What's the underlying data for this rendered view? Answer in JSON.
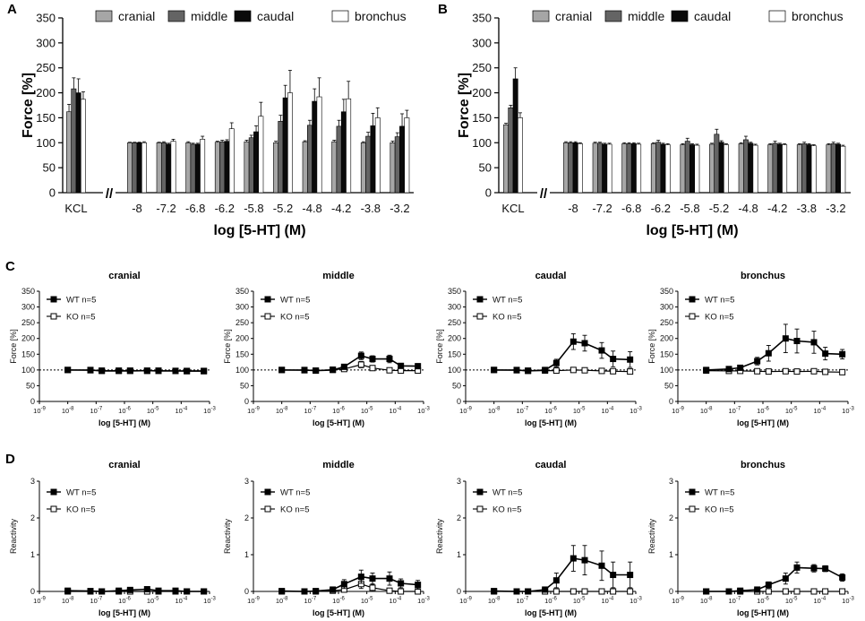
{
  "chart_data": [
    {
      "panel": "A",
      "type": "bar",
      "ylabel": "Force [%]",
      "xlabel": "log [5-HT] (M)",
      "ylim": [
        0,
        350
      ],
      "yticks": [
        0,
        50,
        100,
        150,
        200,
        250,
        300,
        350
      ],
      "break_symbol": "//",
      "categories": [
        "KCL",
        "-8",
        "-7.2",
        "-6.8",
        "-6.2",
        "-5.8",
        "-5.2",
        "-4.8",
        "-4.2",
        "-3.8",
        "-3.2"
      ],
      "series": [
        {
          "name": "cranial",
          "color": "#a6a6a6",
          "values": [
            162,
            100,
            100,
            100,
            101,
            102,
            100,
            102,
            102,
            100,
            100
          ],
          "errors": [
            15,
            1,
            1,
            2,
            2,
            3,
            3,
            2,
            3,
            2,
            3
          ]
        },
        {
          "name": "middle",
          "color": "#646464",
          "values": [
            208,
            100,
            100,
            97,
            102,
            110,
            143,
            135,
            133,
            113,
            112
          ],
          "errors": [
            22,
            1,
            2,
            2,
            3,
            5,
            12,
            10,
            12,
            8,
            8
          ]
        },
        {
          "name": "caudal",
          "color": "#0a0a0a",
          "values": [
            200,
            100,
            97,
            97,
            103,
            122,
            190,
            183,
            162,
            134,
            133
          ],
          "errors": [
            28,
            1,
            2,
            2,
            3,
            12,
            25,
            25,
            25,
            25,
            25
          ]
        },
        {
          "name": "bronchus",
          "color": "#ffffff",
          "values": [
            187,
            100,
            103,
            107,
            128,
            153,
            200,
            192,
            188,
            150,
            150
          ],
          "errors": [
            15,
            2,
            4,
            6,
            12,
            28,
            45,
            38,
            35,
            20,
            15
          ]
        }
      ]
    },
    {
      "panel": "B",
      "type": "bar",
      "ylabel": "Force [%]",
      "xlabel": "log [5-HT] (M)",
      "ylim": [
        0,
        350
      ],
      "yticks": [
        0,
        50,
        100,
        150,
        200,
        250,
        300,
        350
      ],
      "break_symbol": "//",
      "categories": [
        "KCL",
        "-8",
        "-7.2",
        "-6.8",
        "-6.2",
        "-5.8",
        "-5.2",
        "-4.8",
        "-4.2",
        "-3.8",
        "-3.2"
      ],
      "series": [
        {
          "name": "cranial",
          "color": "#a6a6a6",
          "values": [
            136,
            100,
            99,
            98,
            98,
            96,
            97,
            98,
            96,
            96,
            96
          ],
          "errors": [
            3,
            2,
            2,
            2,
            2,
            2,
            2,
            2,
            2,
            2,
            2
          ]
        },
        {
          "name": "middle",
          "color": "#646464",
          "values": [
            170,
            100,
            99,
            98,
            101,
            103,
            117,
            106,
            99,
            98,
            98
          ],
          "errors": [
            5,
            2,
            2,
            2,
            4,
            6,
            10,
            7,
            4,
            3,
            3
          ]
        },
        {
          "name": "caudal",
          "color": "#0a0a0a",
          "values": [
            228,
            100,
            97,
            98,
            97,
            96,
            101,
            99,
            97,
            96,
            97
          ],
          "errors": [
            22,
            2,
            2,
            2,
            2,
            2,
            3,
            2,
            2,
            2,
            2
          ]
        },
        {
          "name": "bronchus",
          "color": "#ffffff",
          "values": [
            150,
            98,
            97,
            97,
            96,
            95,
            96,
            95,
            96,
            94,
            93
          ],
          "errors": [
            10,
            2,
            2,
            2,
            2,
            2,
            2,
            2,
            2,
            2,
            2
          ]
        }
      ]
    },
    {
      "panel": "C",
      "type": "line",
      "ylabel": "Force [%]",
      "xlabel": "log [5-HT] (M)",
      "ylim": [
        0,
        350
      ],
      "yticks": [
        0,
        50,
        100,
        150,
        200,
        250,
        300,
        350
      ],
      "baseline": 100,
      "x_exponents": [
        -9,
        -8,
        -7,
        -6,
        -5,
        -4,
        -3
      ],
      "x": [
        -8,
        -7.2,
        -6.8,
        -6.2,
        -5.8,
        -5.2,
        -4.8,
        -4.2,
        -3.8,
        -3.2
      ],
      "legend": {
        "wt": "WT  n=5",
        "ko": "KO  n=5"
      },
      "plots": [
        {
          "title": "cranial",
          "wt": [
            100,
            100,
            97,
            97,
            97,
            98,
            97,
            97,
            97,
            97
          ],
          "wt_err": [
            1,
            1,
            1,
            2,
            2,
            3,
            2,
            2,
            2,
            2
          ],
          "ko": [
            100,
            99,
            98,
            98,
            98,
            97,
            98,
            97,
            96,
            96
          ],
          "ko_err": [
            1,
            1,
            1,
            1,
            1,
            1,
            1,
            1,
            1,
            1
          ]
        },
        {
          "title": "middle",
          "wt": [
            100,
            100,
            98,
            100,
            110,
            145,
            135,
            135,
            113,
            112
          ],
          "wt_err": [
            1,
            1,
            1,
            2,
            5,
            12,
            10,
            12,
            8,
            8
          ],
          "ko": [
            100,
            99,
            98,
            101,
            103,
            117,
            106,
            99,
            98,
            98
          ],
          "ko_err": [
            1,
            1,
            1,
            3,
            5,
            10,
            7,
            4,
            3,
            3
          ]
        },
        {
          "title": "caudal",
          "wt": [
            100,
            100,
            97,
            100,
            122,
            190,
            185,
            162,
            135,
            133
          ],
          "wt_err": [
            1,
            1,
            1,
            3,
            12,
            25,
            25,
            25,
            25,
            25
          ],
          "ko": [
            100,
            99,
            98,
            98,
            98,
            100,
            99,
            97,
            96,
            95
          ],
          "ko_err": [
            1,
            1,
            1,
            1,
            1,
            2,
            2,
            1,
            1,
            1
          ]
        },
        {
          "title": "bronchus",
          "wt": [
            100,
            103,
            107,
            128,
            153,
            200,
            192,
            188,
            152,
            150
          ],
          "wt_err": [
            2,
            4,
            6,
            12,
            25,
            45,
            38,
            35,
            20,
            15
          ],
          "ko": [
            98,
            97,
            97,
            96,
            95,
            96,
            95,
            96,
            94,
            93
          ],
          "ko_err": [
            1,
            1,
            1,
            1,
            1,
            1,
            1,
            1,
            1,
            1
          ]
        }
      ]
    },
    {
      "panel": "D",
      "type": "line",
      "ylabel": "Reactivity",
      "xlabel": "log [5-HT] (M)",
      "ylim": [
        0,
        3
      ],
      "yticks": [
        0,
        1,
        2,
        3
      ],
      "x_exponents": [
        -9,
        -8,
        -7,
        -6,
        -5,
        -4,
        -3
      ],
      "x": [
        -8,
        -7.2,
        -6.8,
        -6.2,
        -5.8,
        -5.2,
        -4.8,
        -4.2,
        -3.8,
        -3.2
      ],
      "legend": {
        "wt": "WT  n=5",
        "ko": "KO  n=5"
      },
      "plots": [
        {
          "title": "cranial",
          "wt": [
            0.02,
            0.01,
            0,
            0.02,
            0.04,
            0.06,
            0.02,
            0.02,
            0,
            0
          ],
          "wt_err": [
            0.02,
            0.02,
            0.02,
            0.03,
            0.04,
            0.06,
            0.04,
            0.03,
            0.02,
            0.02
          ],
          "ko": [
            0,
            0,
            0,
            0,
            0,
            0,
            0,
            0,
            0,
            0
          ],
          "ko_err": [
            0,
            0,
            0,
            0,
            0,
            0,
            0,
            0,
            0,
            0
          ]
        },
        {
          "title": "middle",
          "wt": [
            0.01,
            0,
            0.01,
            0.05,
            0.2,
            0.4,
            0.35,
            0.35,
            0.22,
            0.18
          ],
          "wt_err": [
            0.02,
            0.02,
            0.03,
            0.05,
            0.12,
            0.18,
            0.15,
            0.18,
            0.12,
            0.12
          ],
          "ko": [
            0,
            0,
            0,
            0.02,
            0.05,
            0.2,
            0.1,
            0.02,
            0,
            0
          ],
          "ko_err": [
            0.01,
            0.01,
            0.01,
            0.03,
            0.05,
            0.12,
            0.1,
            0.04,
            0.02,
            0.02
          ]
        },
        {
          "title": "caudal",
          "wt": [
            0.01,
            0,
            0,
            0.05,
            0.3,
            0.9,
            0.85,
            0.7,
            0.45,
            0.45
          ],
          "wt_err": [
            0.02,
            0.02,
            0.02,
            0.05,
            0.2,
            0.35,
            0.4,
            0.4,
            0.35,
            0.35
          ],
          "ko": [
            0,
            0,
            0,
            0,
            0,
            0,
            0,
            0,
            0,
            0
          ],
          "ko_err": [
            0,
            0,
            0,
            0,
            0,
            0,
            0,
            0,
            0,
            0
          ]
        },
        {
          "title": "bronchus",
          "wt": [
            0,
            0,
            0.02,
            0.05,
            0.18,
            0.35,
            0.65,
            0.63,
            0.62,
            0.38
          ],
          "wt_err": [
            0.02,
            0.02,
            0.03,
            0.04,
            0.08,
            0.15,
            0.15,
            0.1,
            0.08,
            0.1
          ],
          "ko": [
            0,
            0,
            0,
            0,
            0,
            0,
            0,
            0,
            0,
            0
          ],
          "ko_err": [
            0,
            0,
            0,
            0,
            0,
            0,
            0,
            0,
            0,
            0
          ]
        }
      ]
    }
  ]
}
